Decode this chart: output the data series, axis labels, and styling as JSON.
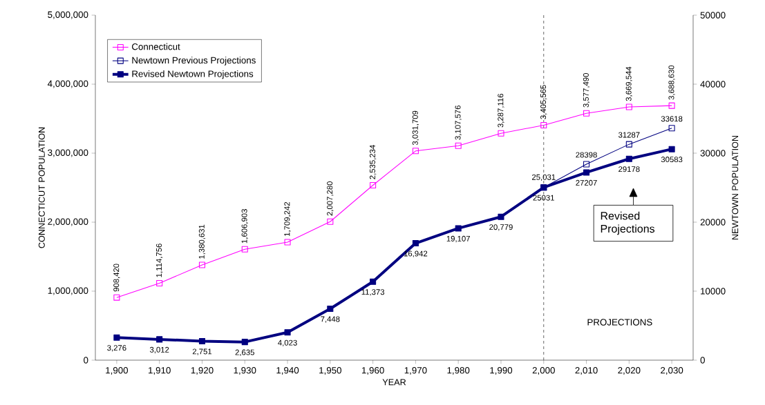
{
  "chart_data": {
    "type": "line",
    "xlabel": "YEAR",
    "ylabel": "CONNECTICUT POPULATION",
    "y2label": "NEWTOWN POPULATION",
    "categories": [
      "1,900",
      "1,910",
      "1,920",
      "1,930",
      "1,940",
      "1,950",
      "1,960",
      "1,970",
      "1,980",
      "1,990",
      "2,000",
      "2,010",
      "2,020",
      "2,030"
    ],
    "series": [
      {
        "name": "Connecticut",
        "color": "#ff00ff",
        "axis": "y",
        "values": [
          908420,
          1114756,
          1380631,
          1606903,
          1709242,
          2007280,
          2535234,
          3031709,
          3107576,
          3287116,
          3405565,
          3577490,
          3669544,
          3688630
        ],
        "value_labels": [
          "908,420",
          "1,114,756",
          "1,380,631",
          "1,606,903",
          "1,709,242",
          "2,007,280",
          "2,535,234",
          "3,031,709",
          "3,107,576",
          "3,287,116",
          "3,405,565",
          "3,577,490",
          "3,669,544",
          "3,688,630"
        ]
      },
      {
        "name": "Newtown Previous Projections",
        "color": "#000080",
        "axis": "y2",
        "values": [
          null,
          null,
          null,
          null,
          null,
          null,
          null,
          null,
          null,
          null,
          25031,
          28398,
          31287,
          33618
        ],
        "value_labels": [
          null,
          null,
          null,
          null,
          null,
          null,
          null,
          null,
          null,
          null,
          "25,031",
          "28398",
          "31287",
          "33618"
        ]
      },
      {
        "name": "Revised Newtown Projections",
        "color": "#000080",
        "axis": "y2",
        "values": [
          3276,
          3012,
          2751,
          2635,
          4023,
          7448,
          11373,
          16942,
          19107,
          20779,
          25031,
          27207,
          29178,
          30583
        ],
        "value_labels": [
          "3,276",
          "3,012",
          "2,751",
          "2,635",
          "4,023",
          "7,448",
          "11,373",
          "16,942",
          "19,107",
          "20,779",
          "25031",
          "27207",
          "29178",
          "30583"
        ]
      }
    ],
    "ylim": [
      0,
      5000000
    ],
    "yticks": [
      0,
      {
        "value": 1000000,
        "label": "1,000,000"
      },
      {
        "value": 2000000,
        "label": "2,000,000"
      },
      {
        "value": 3000000,
        "label": "3,000,000"
      },
      {
        "value": 4000000,
        "label": "4,000,000"
      },
      {
        "value": 5000000,
        "label": "5,000,000"
      }
    ],
    "y2lim": [
      0,
      50000
    ],
    "y2ticks": [
      0,
      10000,
      20000,
      30000,
      40000,
      50000
    ],
    "ref_lines": [
      {
        "axis": "x",
        "value": "2,000",
        "color": "#404040",
        "line_style": "dashed"
      }
    ],
    "annotations": [
      "PROJECTIONS",
      "Revised Projections"
    ],
    "legend": "top left",
    "marker": "square",
    "grid": false
  }
}
